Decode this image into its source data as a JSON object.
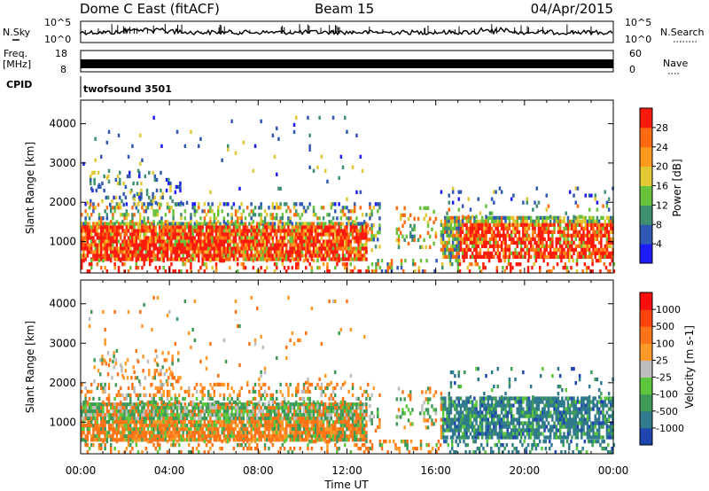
{
  "header": {
    "title": "Dome C East (fitACF)",
    "beam": "Beam 15",
    "date": "04/Apr/2015"
  },
  "strip": {
    "nsky_label": "N.Sky",
    "nsky_top": "10^5",
    "nsky_bottom": "10^0",
    "nsearch_label": "N.Search",
    "nsearch_top": "10^5",
    "nsearch_bottom": "10^0",
    "freq_label": "Freq.",
    "freq_unit": "[MHz]",
    "freq_top": "18",
    "freq_bottom": "8",
    "nave_label": "Nave",
    "nave_top": "60",
    "nave_bottom": "0",
    "cpid_label": "CPID",
    "cpid_value": "twofsound 3501"
  },
  "chart_data": [
    {
      "type": "heatmap",
      "name": "power",
      "ylabel": "Slant Range [km]",
      "ylim": [
        200,
        4600
      ],
      "yticks": [
        1000,
        2000,
        3000,
        4000
      ],
      "xlim": [
        0,
        24
      ],
      "colorbar": {
        "label": "Power [dB]",
        "ticks": [
          "4",
          "8",
          "12",
          "16",
          "20",
          "24",
          "28"
        ],
        "colors": [
          "#1d1cff",
          "#2f57b4",
          "#3f9070",
          "#68c23c",
          "#e2c832",
          "#ff9a1e",
          "#ff6a10",
          "#ff1a0e"
        ]
      }
    },
    {
      "type": "heatmap",
      "name": "velocity",
      "ylabel": "Slant Range [km]",
      "ylim": [
        200,
        4600
      ],
      "yticks": [
        1000,
        2000,
        3000,
        4000
      ],
      "xlim": [
        0,
        24
      ],
      "xlabel": "Time UT",
      "xticks": [
        "00:00",
        "04:00",
        "08:00",
        "12:00",
        "16:00",
        "20:00",
        "00:00"
      ],
      "colorbar": {
        "label": "Velocity [m s-1]",
        "ticks": [
          "1000",
          "500",
          "100",
          "25",
          "-25",
          "-100",
          "-500",
          "-1000"
        ],
        "colors": [
          "#1f45b0",
          "#2f7a8c",
          "#3f9a5a",
          "#5cc63c",
          "#bdbdbd",
          "#ff9a28",
          "#ff7418",
          "#ff4410",
          "#ff0c0c"
        ]
      }
    }
  ]
}
